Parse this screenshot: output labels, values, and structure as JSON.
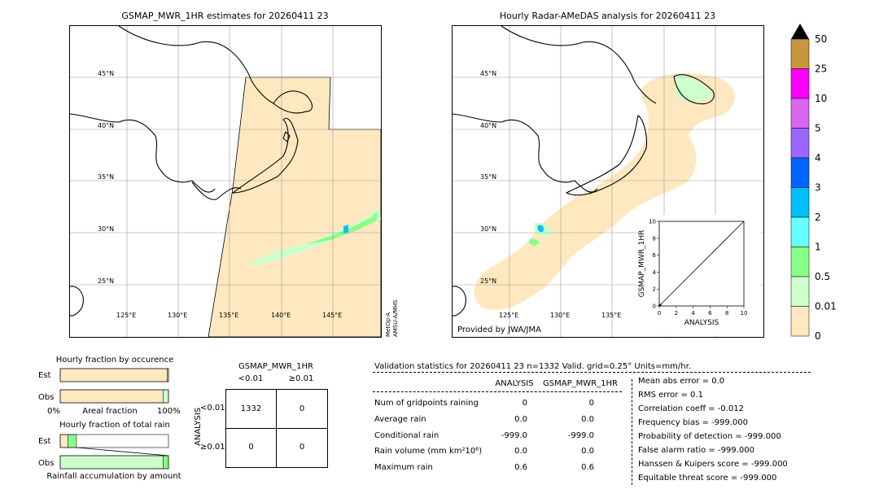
{
  "left_map": {
    "title": "GSMAP_MWR_1HR estimates for 20260411 23",
    "lat_labels": [
      "45°N",
      "40°N",
      "35°N",
      "30°N",
      "25°N"
    ],
    "lon_labels": [
      "125°E",
      "130°E",
      "135°E",
      "140°E",
      "145°E"
    ],
    "side_label_1": "MetOp-A",
    "side_label_2": "AMSU-A/MHS"
  },
  "right_map": {
    "title": "Hourly Radar-AMeDAS analysis for 20260411 23",
    "lat_labels": [
      "45°N",
      "40°N",
      "35°N",
      "30°N",
      "25°N"
    ],
    "lon_labels": [
      "125°E",
      "130°E",
      "135°E"
    ],
    "credit": "Provided by JWA/JMA"
  },
  "colorbar": {
    "labels": [
      "50",
      "25",
      "10",
      "5",
      "4",
      "3",
      "2",
      "1",
      "0.5",
      "0.01",
      "0"
    ],
    "colors": [
      "#c8963c",
      "#ff00ff",
      "#d966ee",
      "#9966ff",
      "#0064ff",
      "#00bfff",
      "#66ffff",
      "#88ff88",
      "#ccffcc",
      "#ffe8c0"
    ]
  },
  "chart_data": [
    {
      "type": "scatter",
      "title": "",
      "xlabel": "ANALYSIS",
      "ylabel": "GSMAP_MWR_1HR",
      "xlim": [
        0,
        10
      ],
      "ylim": [
        0,
        10
      ],
      "x_ticks": [
        "0",
        "2",
        "4",
        "6",
        "8",
        "10"
      ],
      "y_ticks": [
        "0",
        "2",
        "4",
        "6",
        "8",
        "10"
      ],
      "diagonal": true,
      "points": [
        {
          "x": 0.0,
          "y": 0.0
        }
      ]
    },
    {
      "type": "bar",
      "title": "Hourly fraction by occurence",
      "categories": [
        "Est",
        "Obs"
      ],
      "xlabel": "Areal fraction",
      "x_left_label": "0%",
      "x_right_label": "100%",
      "series": [
        {
          "colors": [
            "#ffe8c0",
            "#ccffcc"
          ],
          "Est": [
            0.99,
            0.01
          ],
          "Obs": [
            0.95,
            0.05
          ]
        }
      ]
    },
    {
      "type": "bar",
      "title": "Hourly fraction of total rain",
      "categories": [
        "Est",
        "Obs"
      ],
      "xlabel": "Rainfall accumulation by amount",
      "series": [
        {
          "colors": [
            "#ffe8c0",
            "#ccffcc",
            "#88ff88"
          ],
          "Est": [
            0.07,
            0.0,
            0.08
          ],
          "Obs": [
            0.0,
            0.95,
            0.05
          ]
        }
      ]
    }
  ],
  "contingency": {
    "title": "GSMAP_MWR_1HR",
    "col_headers": [
      "<0.01",
      "≥0.01"
    ],
    "row_headers": [
      "<0.01",
      "≥0.01"
    ],
    "y_label": "ANALYSIS",
    "cells": [
      [
        "1332",
        "0"
      ],
      [
        "0",
        "0"
      ]
    ]
  },
  "validation": {
    "header": "Validation statistics for 20260411 23  n=1332 Valid. grid=0.25° Units=mm/hr.",
    "col_analysis": "ANALYSIS",
    "col_gsmap": "GSMAP_MWR_1HR",
    "rows": [
      {
        "label": "Num of gridpoints raining",
        "a": "0",
        "g": "0"
      },
      {
        "label": "Average rain",
        "a": "0.0",
        "g": "0.0"
      },
      {
        "label": "Conditional rain",
        "a": "-999.0",
        "g": "-999.0"
      },
      {
        "label": "Rain volume (mm km²10⁶)",
        "a": "0.0",
        "g": "0.0"
      },
      {
        "label": "Maximum rain",
        "a": "0.6",
        "g": "0.6"
      }
    ],
    "scores": [
      "Mean abs error =    0.0",
      "RMS error =    0.1",
      "Correlation coeff = -0.012",
      "Frequency bias = -999.000",
      "Probability of detection = -999.000",
      "False alarm ratio = -999.000",
      "Hanssen & Kuipers score = -999.000",
      "Equitable threat score = -999.000"
    ]
  }
}
